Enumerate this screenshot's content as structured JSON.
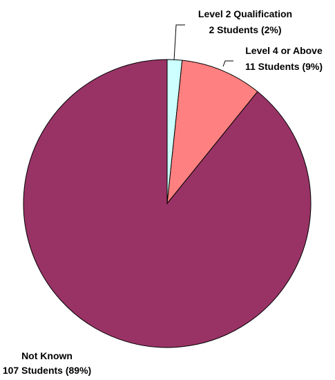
{
  "chart_data": {
    "type": "pie",
    "title": "",
    "slices": [
      {
        "label": "Level 2 Qualification",
        "value_label": "2 Students (2%)",
        "value": 2,
        "percent": 2,
        "color": "#ccffff"
      },
      {
        "label": "Level 4 or Above",
        "value_label": "11 Students (9%)",
        "value": 11,
        "percent": 9,
        "color": "#ff8080"
      },
      {
        "label": "Not Known",
        "value_label": "107 Students (89%)",
        "value": 107,
        "percent": 89,
        "color": "#993366"
      }
    ],
    "start_angle_deg": 0,
    "direction": "clockwise",
    "edge_color": "#000000",
    "legend": "none"
  }
}
